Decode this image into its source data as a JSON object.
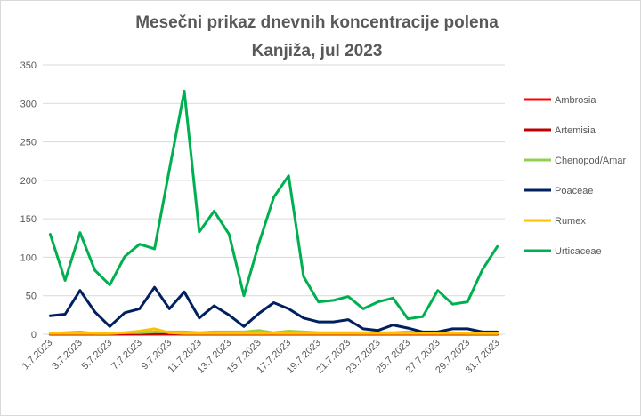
{
  "chart_data": {
    "type": "line",
    "title": "Mesečni prikaz dnevnih koncentracije polena",
    "subtitle": "Kanjiža, jul 2023",
    "xlabel": "",
    "ylabel": "",
    "ylim": [
      0,
      350
    ],
    "yticks": [
      0,
      50,
      100,
      150,
      200,
      250,
      300,
      350
    ],
    "grid": true,
    "legend_position": "right",
    "x": [
      "1.7.2023",
      "2.7.2023",
      "3.7.2023",
      "4.7.2023",
      "5.7.2023",
      "6.7.2023",
      "7.7.2023",
      "8.7.2023",
      "9.7.2023",
      "10.7.2023",
      "11.7.2023",
      "12.7.2023",
      "13.7.2023",
      "14.7.2023",
      "15.7.2023",
      "16.7.2023",
      "17.7.2023",
      "18.7.2023",
      "19.7.2023",
      "20.7.2023",
      "21.7.2023",
      "22.7.2023",
      "23.7.2023",
      "24.7.2023",
      "25.7.2023",
      "26.7.2023",
      "27.7.2023",
      "28.7.2023",
      "29.7.2023",
      "30.7.2023",
      "31.7.2023"
    ],
    "x_tick_labels": [
      "1.7.2023",
      "3.7.2023",
      "5.7.2023",
      "7.7.2023",
      "9.7.2023",
      "11.7.2023",
      "13.7.2023",
      "15.7.2023",
      "17.7.2023",
      "19.7.2023",
      "21.7.2023",
      "23.7.2023",
      "25.7.2023",
      "27.7.2023",
      "29.7.2023",
      "31.7.2023"
    ],
    "series": [
      {
        "name": "Ambrosia",
        "color": "#ff0000",
        "values": [
          0,
          0,
          0,
          0,
          0,
          0,
          0,
          0,
          0,
          0,
          0,
          0,
          0,
          0,
          0,
          0,
          0,
          0,
          0,
          0,
          0,
          0,
          0,
          0,
          0,
          0,
          0,
          0,
          0,
          0,
          0
        ]
      },
      {
        "name": "Artemisia",
        "color": "#c00000",
        "values": [
          0,
          0,
          0,
          0,
          0,
          0,
          0,
          1,
          1,
          0,
          0,
          0,
          0,
          0,
          0,
          0,
          0,
          0,
          0,
          0,
          0,
          0,
          0,
          0,
          0,
          0,
          0,
          0,
          0,
          0,
          0
        ]
      },
      {
        "name": "Chenopod/Amar",
        "color": "#92d050",
        "values": [
          1,
          2,
          3,
          1,
          1,
          2,
          2,
          3,
          3,
          3,
          2,
          3,
          3,
          3,
          5,
          2,
          4,
          3,
          2,
          2,
          2,
          2,
          2,
          2,
          3,
          2,
          1,
          2,
          1,
          1,
          1
        ]
      },
      {
        "name": "Poaceae",
        "color": "#002060",
        "values": [
          24,
          26,
          57,
          29,
          10,
          28,
          33,
          61,
          33,
          55,
          21,
          37,
          25,
          10,
          27,
          41,
          33,
          21,
          16,
          16,
          19,
          7,
          5,
          12,
          8,
          3,
          3,
          7,
          7,
          3,
          3
        ]
      },
      {
        "name": "Rumex",
        "color": "#ffc000",
        "values": [
          1,
          1,
          1,
          1,
          1,
          2,
          4,
          7,
          2,
          1,
          1,
          1,
          1,
          1,
          1,
          1,
          1,
          1,
          1,
          1,
          1,
          1,
          1,
          1,
          1,
          1,
          1,
          1,
          1,
          1,
          1
        ]
      },
      {
        "name": "Urticaceae",
        "color": "#00b050",
        "values": [
          130,
          70,
          132,
          83,
          64,
          101,
          117,
          111,
          214,
          316,
          133,
          160,
          130,
          50,
          118,
          178,
          206,
          75,
          42,
          44,
          49,
          33,
          42,
          47,
          20,
          23,
          57,
          39,
          42,
          84,
          114
        ]
      }
    ]
  }
}
